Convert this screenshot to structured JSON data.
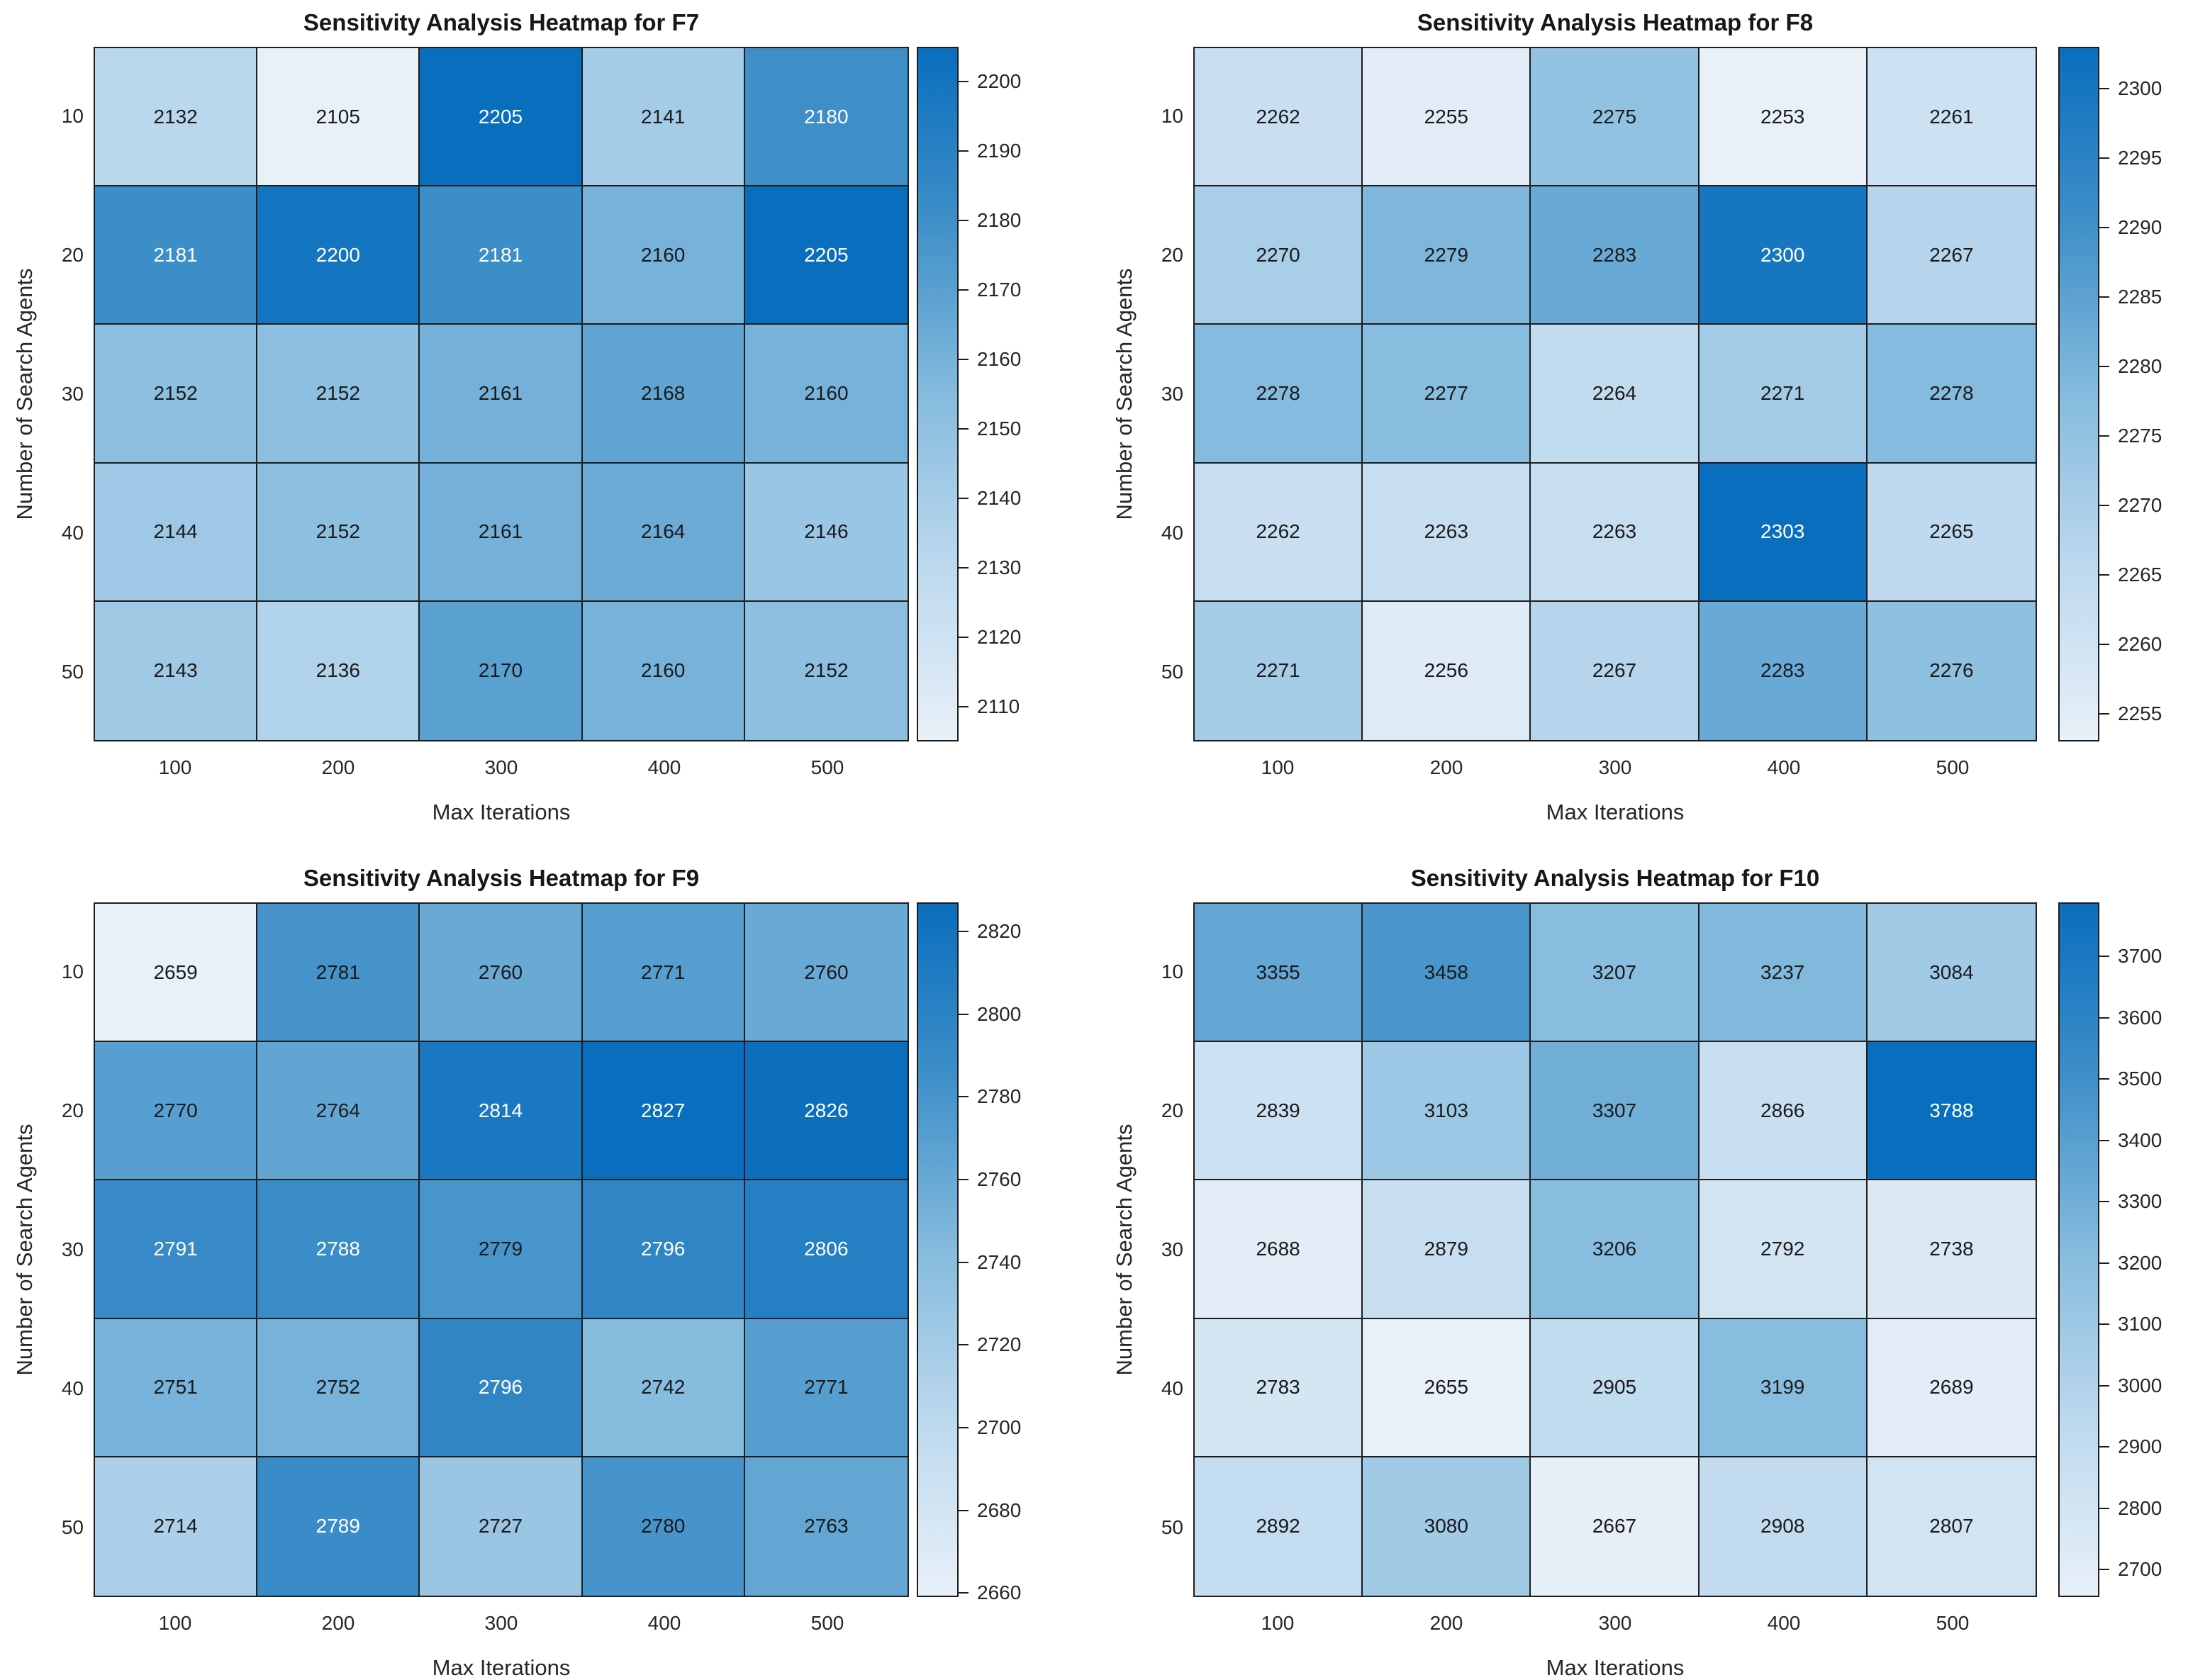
{
  "figure": {
    "background": "#ffffff"
  },
  "style": {
    "colormap_stops": [
      "#e8f0f8",
      "#bdd9ee",
      "#85bbde",
      "#3e8fc8",
      "#0a6ebe"
    ],
    "cell_text_dark": "#1a1a1a",
    "cell_text_light": "#ffffff",
    "white_text_threshold": 0.73,
    "grid_line_color": "#1d1d1d",
    "axis_text_color": "#262626",
    "title_color": "#171717"
  },
  "chart_data": [
    {
      "type": "heatmap",
      "id": "f7",
      "title": "Sensitivity Analysis Heatmap for F7",
      "xlabel": "Max Iterations",
      "ylabel": "Number of Search Agents",
      "x_categories": [
        "100",
        "200",
        "300",
        "400",
        "500"
      ],
      "y_categories": [
        "10",
        "20",
        "30",
        "40",
        "50"
      ],
      "values": [
        [
          2132,
          2105,
          2205,
          2141,
          2180
        ],
        [
          2181,
          2200,
          2181,
          2160,
          2205
        ],
        [
          2152,
          2152,
          2161,
          2168,
          2160
        ],
        [
          2144,
          2152,
          2161,
          2164,
          2146
        ],
        [
          2143,
          2136,
          2170,
          2160,
          2152
        ]
      ],
      "color_range": [
        2105,
        2205
      ],
      "colorbar_ticks": [
        2110,
        2120,
        2130,
        2140,
        2150,
        2160,
        2170,
        2180,
        2190,
        2200
      ],
      "legend_position": "right-colorbar",
      "grid": true
    },
    {
      "type": "heatmap",
      "id": "f8",
      "title": "Sensitivity Analysis Heatmap for F8",
      "xlabel": "Max Iterations",
      "ylabel": "Number of Search Agents",
      "x_categories": [
        "100",
        "200",
        "300",
        "400",
        "500"
      ],
      "y_categories": [
        "10",
        "20",
        "30",
        "40",
        "50"
      ],
      "values": [
        [
          2262,
          2255,
          2275,
          2253,
          2261
        ],
        [
          2270,
          2279,
          2283,
          2300,
          2267
        ],
        [
          2278,
          2277,
          2264,
          2271,
          2278
        ],
        [
          2262,
          2263,
          2263,
          2303,
          2265
        ],
        [
          2271,
          2256,
          2267,
          2283,
          2276
        ]
      ],
      "color_range": [
        2253,
        2303
      ],
      "colorbar_ticks": [
        2255,
        2260,
        2265,
        2270,
        2275,
        2280,
        2285,
        2290,
        2295,
        2300
      ],
      "legend_position": "right-colorbar",
      "grid": true
    },
    {
      "type": "heatmap",
      "id": "f9",
      "title": "Sensitivity Analysis Heatmap for F9",
      "xlabel": "Max Iterations",
      "ylabel": "Number of Search Agents",
      "x_categories": [
        "100",
        "200",
        "300",
        "400",
        "500"
      ],
      "y_categories": [
        "10",
        "20",
        "30",
        "40",
        "50"
      ],
      "values": [
        [
          2659,
          2781,
          2760,
          2771,
          2760
        ],
        [
          2770,
          2764,
          2814,
          2827,
          2826
        ],
        [
          2791,
          2788,
          2779,
          2796,
          2806
        ],
        [
          2751,
          2752,
          2796,
          2742,
          2771
        ],
        [
          2714,
          2789,
          2727,
          2780,
          2763
        ]
      ],
      "color_range": [
        2659,
        2827
      ],
      "colorbar_ticks": [
        2660,
        2680,
        2700,
        2720,
        2740,
        2760,
        2780,
        2800,
        2820
      ],
      "legend_position": "right-colorbar",
      "grid": true
    },
    {
      "type": "heatmap",
      "id": "f10",
      "title": "Sensitivity Analysis Heatmap for F10",
      "xlabel": "Max Iterations",
      "ylabel": "Number of Search Agents",
      "x_categories": [
        "100",
        "200",
        "300",
        "400",
        "500"
      ],
      "y_categories": [
        "10",
        "20",
        "30",
        "40",
        "50"
      ],
      "values": [
        [
          3355,
          3458,
          3207,
          3237,
          3084
        ],
        [
          2839,
          3103,
          3307,
          2866,
          3788
        ],
        [
          2688,
          2879,
          3206,
          2792,
          2738
        ],
        [
          2783,
          2655,
          2905,
          3199,
          2689
        ],
        [
          2892,
          3080,
          2667,
          2908,
          2807
        ]
      ],
      "color_range": [
        2655,
        3788
      ],
      "colorbar_ticks": [
        2700,
        2800,
        2900,
        3000,
        3100,
        3200,
        3300,
        3400,
        3500,
        3600,
        3700
      ],
      "legend_position": "right-colorbar",
      "grid": true
    }
  ]
}
